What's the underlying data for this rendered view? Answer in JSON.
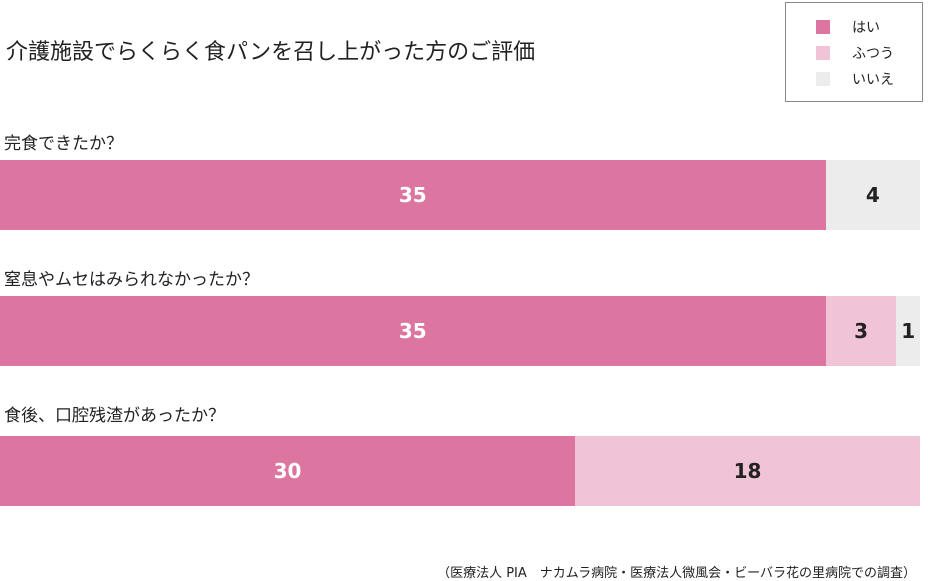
{
  "title": "介護施設でらくらく食パンを召し上がった方のご評価",
  "legend": [
    {
      "label": "はい",
      "color": "#dc76a0"
    },
    {
      "label": "ふつう",
      "color": "#f0c3d7"
    },
    {
      "label": "いいえ",
      "color": "#ececec"
    }
  ],
  "source": "（医療法人 PIA　ナカムラ病院・医療法人微風会・ビーバラ花の里病院での調査）",
  "chart_data": {
    "type": "bar",
    "orientation": "horizontal-stacked",
    "title": "介護施設でらくらく食パンを召し上がった方のご評価",
    "categories": [
      "完食できたか？",
      "窒息やムセはみられなかったか？",
      "食後、口腔残渣があったか？"
    ],
    "series": [
      {
        "name": "はい",
        "values": [
          35,
          35,
          30
        ],
        "color": "#dc76a0"
      },
      {
        "name": "ふつう",
        "values": [
          0,
          3,
          18
        ],
        "color": "#f0c3d7"
      },
      {
        "name": "いいえ",
        "values": [
          4,
          1,
          0
        ],
        "color": "#ececec"
      }
    ],
    "legend_position": "top-right",
    "grid": false
  }
}
